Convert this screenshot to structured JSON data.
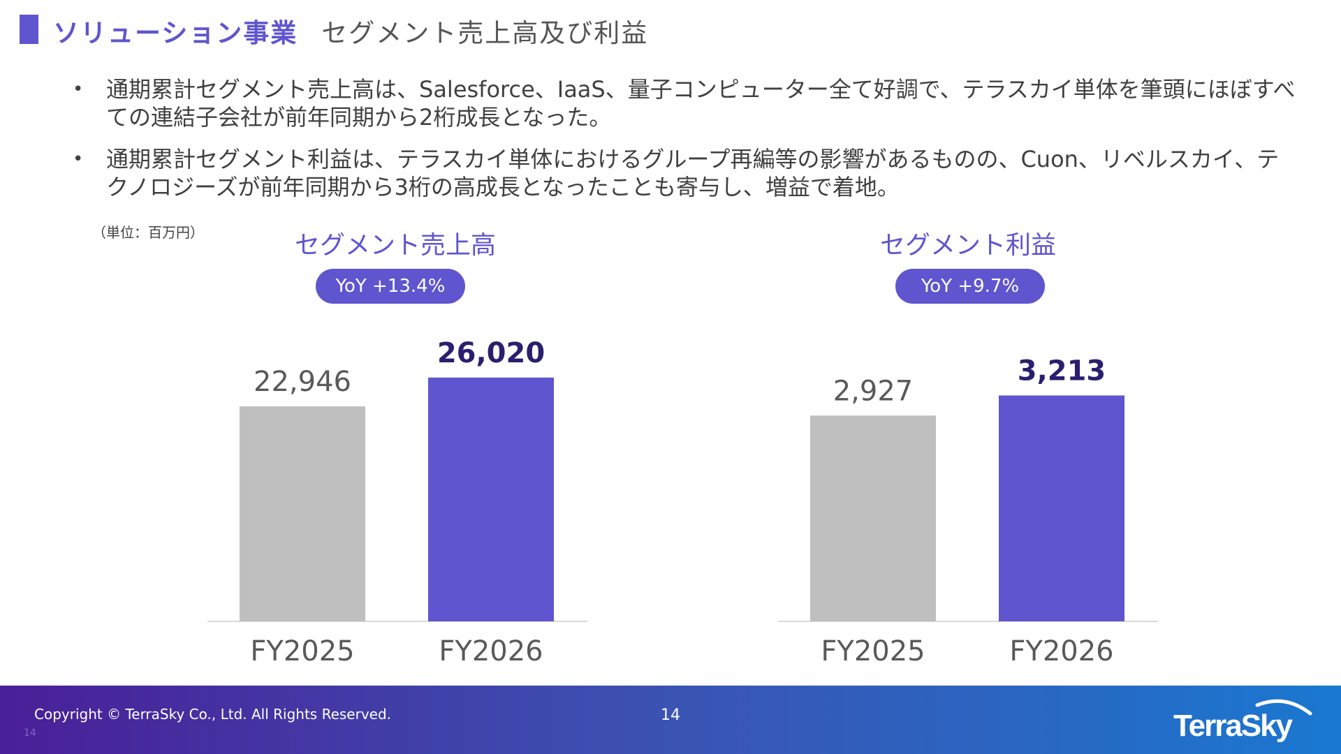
{
  "header": {
    "title_main": "ソリューション事業",
    "title_sub": "セグメント売上高及び利益"
  },
  "bullets": [
    "通期累計セグメント売上高は、Salesforce、IaaS、量子コンピューター全て好調で、テラスカイ単体を筆頭にほぼすべての連結子会社が前年同期から2桁成長となった。",
    "通期累計セグメント利益は、テラスカイ単体におけるグループ再編等の影響があるものの、Cuon、リベルスカイ、テクノロジーズが前年同期から3桁の高成長となったことも寄与し、増益で着地。"
  ],
  "unit_label": "（単位：百万円）",
  "colors": {
    "accent": "#5f55cf",
    "prior_bar": "#bfbfbf",
    "current_bar": "#5f55cf",
    "current_label": "#2a1f6e"
  },
  "chart_data": [
    {
      "type": "bar",
      "title": "セグメント売上高",
      "badge": "YoY +13.4%",
      "categories": [
        "FY2025",
        "FY2026"
      ],
      "values": [
        22946,
        26020
      ],
      "value_labels": [
        "22,946",
        "26,020"
      ],
      "xlabel": "",
      "ylabel": ""
    },
    {
      "type": "bar",
      "title": "セグメント利益",
      "badge": "YoY +9.7%",
      "categories": [
        "FY2025",
        "FY2026"
      ],
      "values": [
        2927,
        3213
      ],
      "value_labels": [
        "2,927",
        "3,213"
      ],
      "xlabel": "",
      "ylabel": ""
    }
  ],
  "footer": {
    "copyright": "Copyright © TerraSky Co., Ltd. All Rights Reserved.",
    "page_number": "14",
    "small_number": "14",
    "logo_text": "TerraSky"
  }
}
